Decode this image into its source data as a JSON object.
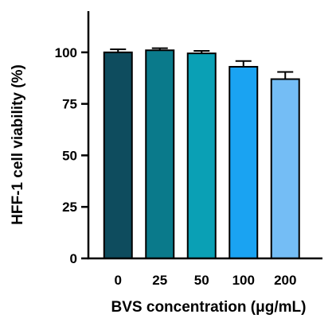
{
  "chart_data": {
    "type": "bar",
    "title": "",
    "xlabel": "BVS concentration (μg/mL)",
    "ylabel": "HFF-1 cell viability (%)",
    "categories": [
      "0",
      "25",
      "50",
      "100",
      "200"
    ],
    "values": [
      100,
      101,
      99.5,
      93,
      87
    ],
    "errors": [
      1.5,
      1.0,
      1.2,
      2.8,
      3.5
    ],
    "ylim": [
      0,
      120
    ],
    "yticks": [
      0,
      25,
      50,
      75,
      100
    ],
    "colors": [
      "#0e4c5e",
      "#0a7a8b",
      "#0aa0b5",
      "#1aa3f2",
      "#74bdf5"
    ],
    "grid": false,
    "legend": "none"
  }
}
